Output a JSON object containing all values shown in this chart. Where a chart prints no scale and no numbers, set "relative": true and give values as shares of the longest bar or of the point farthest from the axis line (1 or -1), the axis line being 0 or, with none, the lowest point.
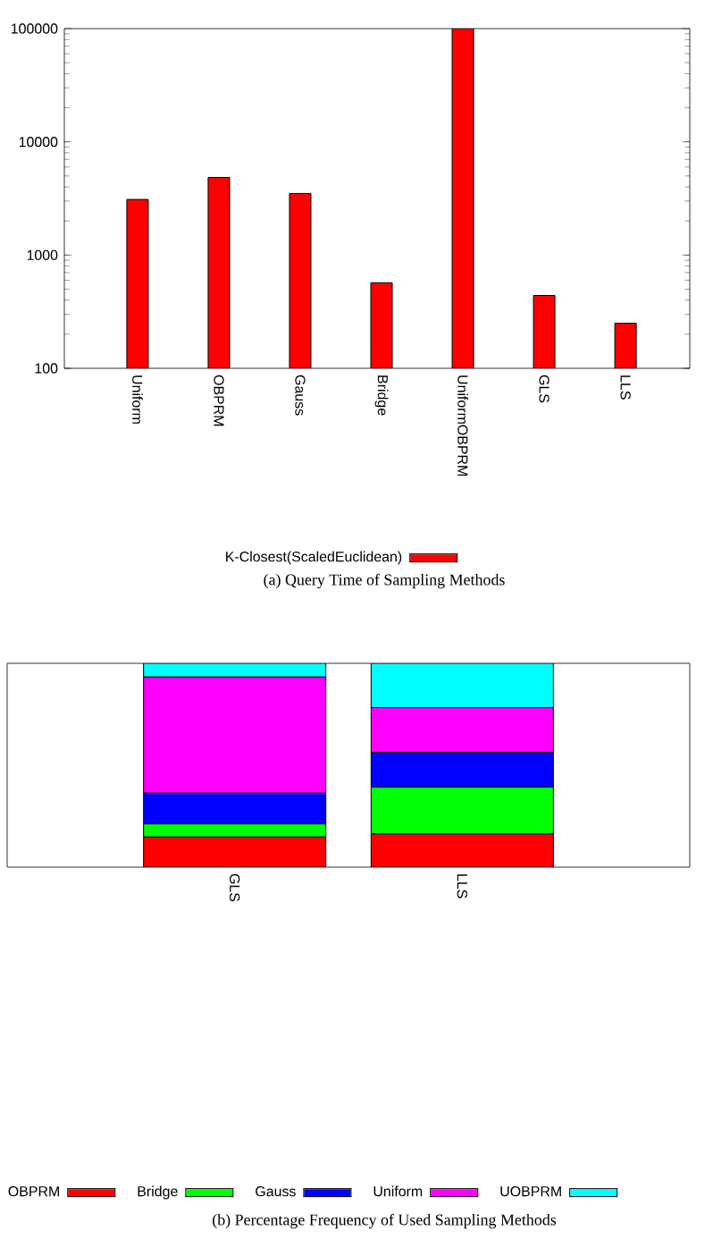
{
  "chart_data": [
    {
      "type": "bar",
      "title": "(a) Query Time of Sampling Methods",
      "categories": [
        "Uniform",
        "OBPRM",
        "Gauss",
        "Bridge",
        "UniformOBPRM",
        "GLS",
        "LLS"
      ],
      "series": [
        {
          "name": "K-Closest(ScaledEuclidean)",
          "color": "#ff0000",
          "values": [
            3100,
            4850,
            3500,
            570,
            100000,
            440,
            250
          ]
        }
      ],
      "log": true,
      "ylim": [
        100,
        100000
      ],
      "yticks": [
        100,
        1000,
        10000,
        100000
      ],
      "legend": "bottom"
    },
    {
      "type": "bar",
      "title": "(b) Percentage Frequency of Used Sampling Methods",
      "categories": [
        "GLS",
        "LLS"
      ],
      "stacked": true,
      "relative": true,
      "series": [
        {
          "name": "OBPRM",
          "color": "#ff0000",
          "values": [
            0.148,
            0.163
          ]
        },
        {
          "name": "Bridge",
          "color": "#00ff00",
          "values": [
            0.064,
            0.23
          ]
        },
        {
          "name": "Gauss",
          "color": "#0000ff",
          "values": [
            0.151,
            0.169
          ]
        },
        {
          "name": "Uniform",
          "color": "#ff00ff",
          "values": [
            0.57,
            0.221
          ]
        },
        {
          "name": "UOBPRM",
          "color": "#00ffff",
          "values": [
            0.067,
            0.217
          ]
        }
      ],
      "legend": "bottom"
    }
  ]
}
